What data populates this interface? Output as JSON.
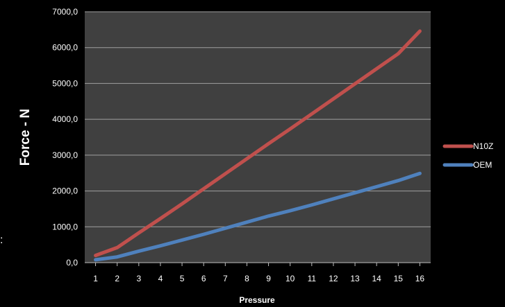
{
  "chart_data": {
    "type": "line",
    "title": "",
    "xlabel": "Pressure",
    "ylabel": "Force - N",
    "x": [
      1,
      2,
      3,
      4,
      5,
      6,
      7,
      8,
      9,
      10,
      11,
      12,
      13,
      14,
      15,
      16
    ],
    "xlim": [
      0.5,
      16.5
    ],
    "ylim": [
      0,
      7000
    ],
    "yticks": [
      0,
      1000,
      2000,
      3000,
      4000,
      5000,
      6000,
      7000
    ],
    "ytick_labels": [
      "0,0",
      "1000,0",
      "2000,0",
      "3000,0",
      "4000,0",
      "5000,0",
      "6000,0",
      "7000,0"
    ],
    "xtick_labels": [
      "1",
      "2",
      "3",
      "4",
      "5",
      "6",
      "7",
      "8",
      "9",
      "10",
      "11",
      "12",
      "13",
      "14",
      "15",
      "16"
    ],
    "grid": true,
    "legend_position": "right",
    "series": [
      {
        "name": "N10Z",
        "color": "#c0504d",
        "values": [
          200,
          420,
          830,
          1230,
          1640,
          2060,
          2480,
          2900,
          3320,
          3730,
          4150,
          4570,
          4990,
          5410,
          5830,
          6460
        ]
      },
      {
        "name": "OEM",
        "color": "#4f81bd",
        "values": [
          80,
          160,
          320,
          470,
          630,
          790,
          960,
          1130,
          1300,
          1450,
          1610,
          1780,
          1950,
          2120,
          2290,
          2490
        ]
      }
    ],
    "plot_background": "#404040",
    "gridline_color": "#a0a0a0",
    "text_color": "#ffffff"
  },
  "edge_text": ":"
}
